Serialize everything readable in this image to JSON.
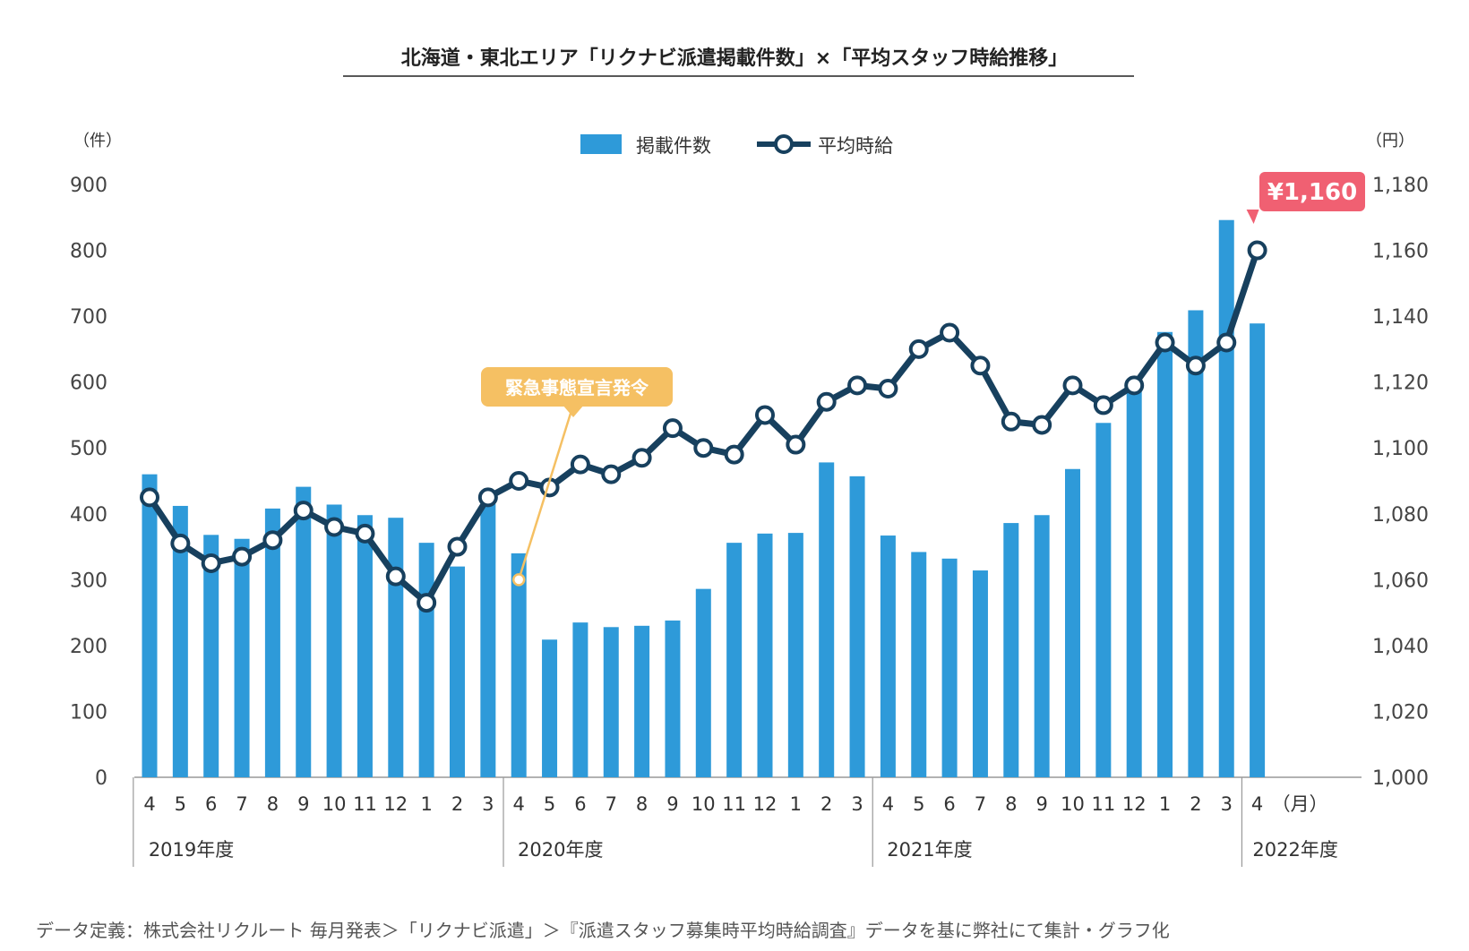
{
  "colors": {
    "bar": "#2e9ad9",
    "line": "#17405e",
    "callout": "#f5c063",
    "price_badge": "#f06072",
    "axis": "#999999"
  },
  "chart_data": {
    "type": "bar",
    "title": "北海道・東北エリア「リクナビ派遣掲載件数」×「平均スタッフ時給推移」",
    "left_unit": "（件）",
    "right_unit": "（円）",
    "month_unit": "（月）",
    "legend": {
      "bar": "掲載件数",
      "line": "平均時給"
    },
    "left_axis": {
      "min": 0,
      "max": 900,
      "ticks": [
        "0",
        "100",
        "200",
        "300",
        "400",
        "500",
        "600",
        "700",
        "800",
        "900"
      ]
    },
    "right_axis": {
      "min": 1000,
      "max": 1180,
      "ticks": [
        "1,000",
        "1,020",
        "1,040",
        "1,060",
        "1,080",
        "1,100",
        "1,120",
        "1,140",
        "1,160",
        "1,180"
      ]
    },
    "categories": [
      "4",
      "5",
      "6",
      "7",
      "8",
      "9",
      "10",
      "11",
      "12",
      "1",
      "2",
      "3",
      "4",
      "5",
      "6",
      "7",
      "8",
      "9",
      "10",
      "11",
      "12",
      "1",
      "2",
      "3",
      "4",
      "5",
      "6",
      "7",
      "8",
      "9",
      "10",
      "11",
      "12",
      "1",
      "2",
      "3",
      "4"
    ],
    "years": [
      {
        "label": "2019年度",
        "start": 0,
        "count": 12
      },
      {
        "label": "2020年度",
        "start": 12,
        "count": 12
      },
      {
        "label": "2021年度",
        "start": 24,
        "count": 12
      },
      {
        "label": "2022年度",
        "start": 36,
        "count": 1
      }
    ],
    "series": [
      {
        "name": "掲載件数",
        "axis": "left",
        "type": "bar",
        "values": [
          460,
          412,
          368,
          362,
          408,
          441,
          414,
          398,
          394,
          356,
          320,
          415,
          340,
          209,
          235,
          228,
          230,
          238,
          286,
          356,
          370,
          371,
          478,
          457,
          367,
          342,
          332,
          314,
          386,
          398,
          468,
          538,
          600,
          676,
          709,
          846,
          689
        ]
      },
      {
        "name": "平均時給",
        "axis": "right",
        "type": "line",
        "values": [
          1085,
          1071,
          1065,
          1067,
          1072,
          1081,
          1076,
          1074,
          1061,
          1053,
          1070,
          1085,
          1090,
          1088,
          1095,
          1092,
          1097,
          1106,
          1100,
          1098,
          1110,
          1101,
          1114,
          1119,
          1118,
          1130,
          1135,
          1125,
          1108,
          1107,
          1119,
          1113,
          1119,
          1132,
          1125,
          1132,
          1160
        ]
      }
    ],
    "annotations": [
      {
        "text": "緊急事態宣言発令",
        "index": 12
      },
      {
        "text": "¥1,160",
        "index": 36
      }
    ]
  },
  "footnote": "データ定義：株式会社リクルート 毎月発表＞「リクナビ派遣」＞『派遣スタッフ募集時平均時給調査』データを基に弊社にて集計・グラフ化"
}
